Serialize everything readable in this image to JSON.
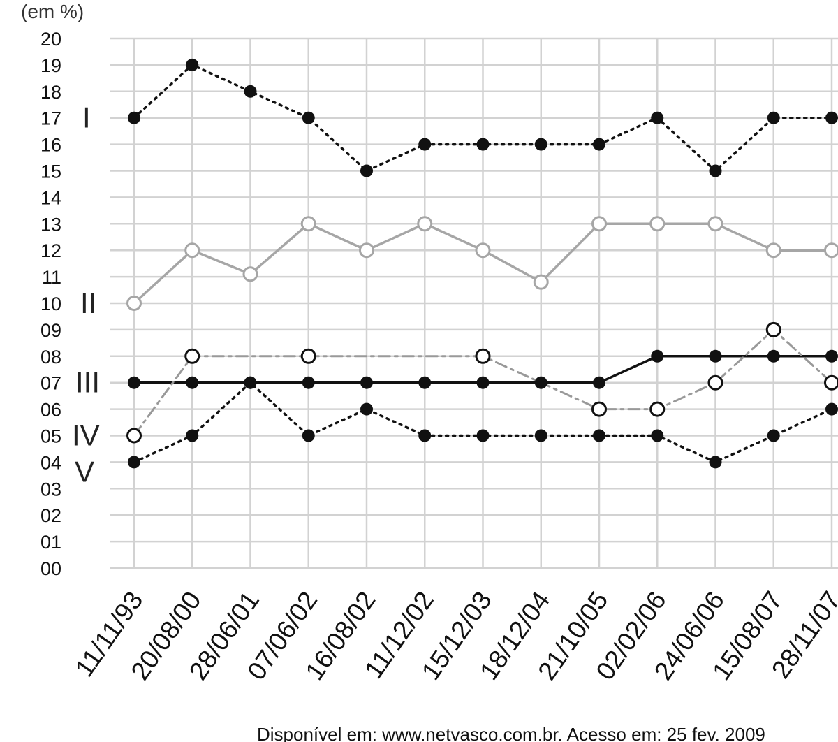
{
  "chart_data": {
    "type": "line",
    "unit_label": "(em %)",
    "x": [
      "11/11/93",
      "20/08/00",
      "28/06/01",
      "07/06/02",
      "16/08/02",
      "11/12/02",
      "15/12/03",
      "18/12/04",
      "21/10/05",
      "02/02/06",
      "24/06/06",
      "15/08/07",
      "28/11/07"
    ],
    "yticks": [
      "00",
      "01",
      "02",
      "03",
      "04",
      "05",
      "06",
      "07",
      "08",
      "09",
      "10",
      "11",
      "12",
      "13",
      "14",
      "15",
      "16",
      "17",
      "18",
      "19",
      "20"
    ],
    "ylim": [
      0,
      20
    ],
    "grid": true,
    "series": [
      {
        "name": "I",
        "values": [
          17,
          19,
          18,
          17,
          15,
          16,
          16,
          16,
          16,
          17,
          15,
          17,
          17
        ],
        "color": "#111111",
        "dash": "dotted",
        "marker": "filled"
      },
      {
        "name": "II",
        "values": [
          10,
          12,
          11.1,
          13,
          12,
          13,
          12,
          10.8,
          13,
          13,
          13,
          12,
          12
        ],
        "color": "#a6a6a6",
        "dash": "solid",
        "marker": "open"
      },
      {
        "name": "III",
        "values": [
          7,
          7,
          7,
          7,
          7,
          7,
          7,
          7,
          7,
          8,
          8,
          8,
          8
        ],
        "color": "#111111",
        "dash": "solid",
        "marker": "filled"
      },
      {
        "name": "IV",
        "values": [
          5,
          8,
          null,
          8,
          null,
          null,
          8,
          null,
          6,
          6,
          7,
          9,
          7
        ],
        "color": "#999999",
        "dash": "dashdot",
        "marker": "open"
      },
      {
        "name": "V",
        "values": [
          4,
          5,
          7,
          5,
          6,
          5,
          5,
          5,
          5,
          5,
          4,
          5,
          6
        ],
        "color": "#111111",
        "dash": "dotted",
        "marker": "filled"
      }
    ],
    "source": "Disponível em: www.netvasco.com.br. Acesso em: 25 fev. 2009"
  }
}
